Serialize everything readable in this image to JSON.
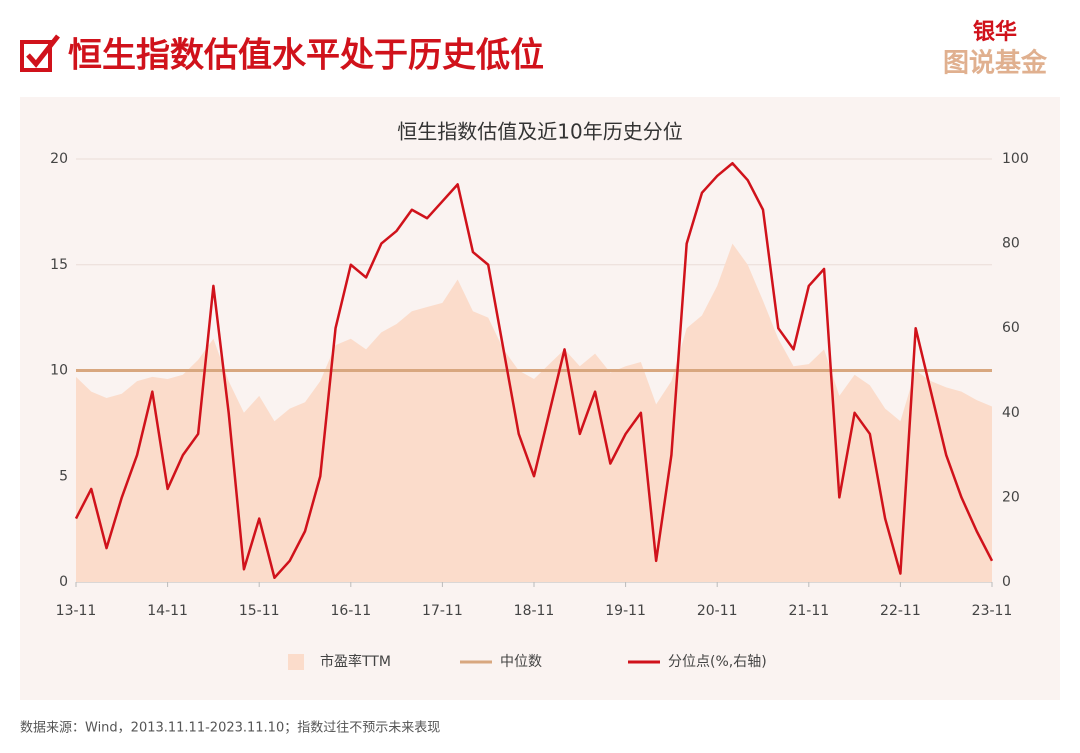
{
  "header": {
    "title": "恒生指数估值水平处于历史低位",
    "logo_top": "银华",
    "logo_bottom": "图说基金"
  },
  "footer": "数据来源：Wind，2013.11.11-2023.11.10；指数过往不预示未来表现",
  "chart_data": {
    "type": "line",
    "title": "恒生指数估值及近10年历史分位",
    "x": [
      "13-11",
      null,
      null,
      null,
      null,
      null,
      "14-11",
      null,
      null,
      null,
      null,
      null,
      "15-11",
      null,
      null,
      null,
      null,
      null,
      "16-11",
      null,
      null,
      null,
      null,
      null,
      "17-11",
      null,
      null,
      null,
      null,
      null,
      "18-11",
      null,
      null,
      null,
      null,
      null,
      "19-11",
      null,
      null,
      null,
      null,
      null,
      "20-11",
      null,
      null,
      null,
      null,
      null,
      "21-11",
      null,
      null,
      null,
      null,
      null,
      "22-11",
      null,
      null,
      null,
      null,
      null,
      "23-11"
    ],
    "ylim": [
      0,
      20
    ],
    "yticks": [
      0,
      5,
      10,
      15,
      20
    ],
    "y2lim": [
      0,
      100
    ],
    "y2ticks": [
      0,
      20,
      40,
      60,
      80,
      100
    ],
    "grid": true,
    "series": [
      {
        "name": "市盈率TTM",
        "color": "#fbdccb",
        "style": "area",
        "values": [
          9.7,
          9.0,
          8.7,
          8.9,
          9.5,
          9.7,
          9.6,
          9.8,
          10.5,
          11.5,
          9.5,
          8.0,
          8.8,
          7.6,
          8.2,
          8.5,
          9.5,
          11.2,
          11.5,
          11.0,
          11.8,
          12.2,
          12.8,
          13.0,
          13.2,
          14.3,
          12.8,
          12.5,
          11.0,
          10.0,
          9.6,
          10.3,
          11.0,
          10.2,
          10.8,
          9.9,
          10.2,
          10.4,
          8.4,
          9.5,
          12.0,
          12.6,
          14.0,
          16.0,
          15.0,
          13.3,
          11.5,
          10.2,
          10.3,
          11.0,
          8.8,
          9.8,
          9.3,
          8.2,
          7.6,
          10.0,
          9.5,
          9.2,
          9.0,
          8.6,
          8.3
        ]
      },
      {
        "name": "中位数",
        "color": "#d8a77f",
        "style": "hline",
        "value": 10.0
      },
      {
        "name": "分位点(%,右轴)",
        "color": "#d0121b",
        "style": "line",
        "axis": "y2",
        "values": [
          15,
          22,
          8,
          20,
          30,
          45,
          22,
          30,
          35,
          70,
          40,
          3,
          15,
          1,
          5,
          12,
          25,
          60,
          75,
          72,
          80,
          83,
          88,
          86,
          90,
          94,
          78,
          75,
          55,
          35,
          25,
          40,
          55,
          35,
          45,
          28,
          35,
          40,
          5,
          30,
          80,
          92,
          96,
          99,
          95,
          88,
          60,
          55,
          70,
          74,
          20,
          40,
          35,
          15,
          2,
          60,
          45,
          30,
          20,
          12,
          5
        ]
      }
    ]
  }
}
